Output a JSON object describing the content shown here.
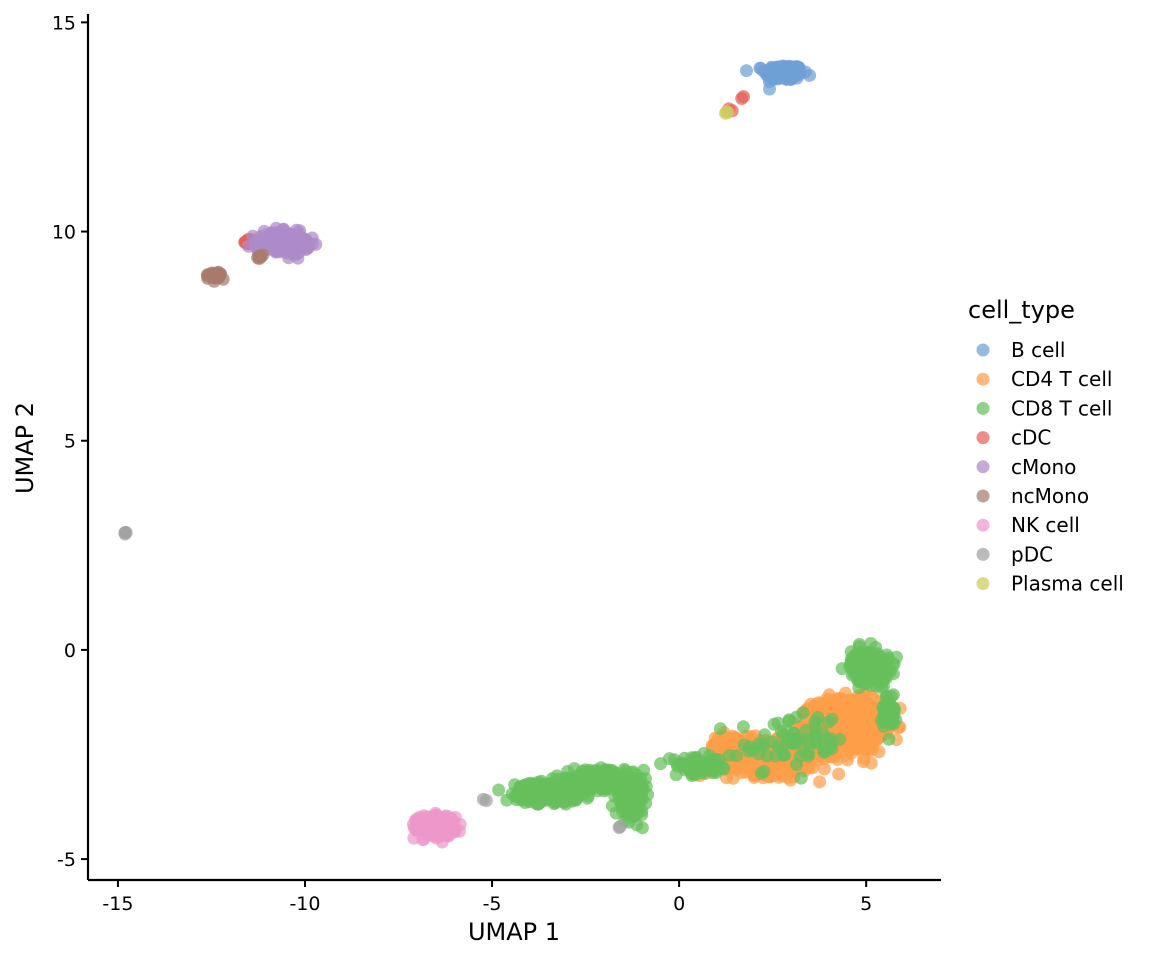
{
  "chart_data": {
    "type": "scatter",
    "title": "",
    "xlabel": "UMAP 1",
    "ylabel": "UMAP 2",
    "xlim": [
      -15.8,
      7.0
    ],
    "ylim": [
      -5.5,
      15.2
    ],
    "xticks": [
      -15,
      -10,
      -5,
      0,
      5
    ],
    "yticks": [
      -5,
      0,
      5,
      10,
      15
    ],
    "xtick_labels": [
      "-15",
      "-10",
      "-5",
      "0",
      "5"
    ],
    "ytick_labels": [
      "-5",
      "0",
      "5",
      "10",
      "15"
    ],
    "grid": false,
    "legend_title": "cell_type",
    "legend_position": "right",
    "series": [
      {
        "name": "B cell",
        "color": "#6f9fd6",
        "clusters": [
          {
            "center": [
              2.8,
              13.8
            ],
            "spread": [
              0.45,
              0.17
            ],
            "n": 220
          }
        ]
      },
      {
        "name": "CD4 T cell",
        "color": "#ff9e4a",
        "clusters": [
          {
            "center": [
              4.5,
              -1.8
            ],
            "spread": [
              0.85,
              0.55
            ],
            "n": 900
          },
          {
            "center": [
              2.5,
              -2.6
            ],
            "spread": [
              1.1,
              0.35
            ],
            "n": 450
          },
          {
            "center": [
              1.5,
              -2.3
            ],
            "spread": [
              0.6,
              0.25
            ],
            "n": 120
          }
        ]
      },
      {
        "name": "CD8 T cell",
        "color": "#67bf5c",
        "clusters": [
          {
            "center": [
              5.1,
              -0.4
            ],
            "spread": [
              0.45,
              0.35
            ],
            "n": 250
          },
          {
            "center": [
              5.6,
              -1.5
            ],
            "spread": [
              0.15,
              0.4
            ],
            "n": 60
          },
          {
            "center": [
              -3.5,
              -3.4
            ],
            "spread": [
              0.75,
              0.2
            ],
            "n": 450
          },
          {
            "center": [
              -2.2,
              -3.1
            ],
            "spread": [
              0.7,
              0.2
            ],
            "n": 300
          },
          {
            "center": [
              -1.3,
              -3.5
            ],
            "spread": [
              0.35,
              0.4
            ],
            "n": 180
          },
          {
            "center": [
              0.5,
              -2.8
            ],
            "spread": [
              0.8,
              0.2
            ],
            "n": 60
          },
          {
            "center": [
              3.0,
              -2.2
            ],
            "spread": [
              1.3,
              0.6
            ],
            "n": 70
          }
        ]
      },
      {
        "name": "cDC",
        "color": "#e8605a",
        "clusters": [
          {
            "center": [
              -11.5,
              9.75
            ],
            "spread": [
              0.1,
              0.06
            ],
            "n": 18
          },
          {
            "center": [
              1.7,
              13.2
            ],
            "spread": [
              0.05,
              0.05
            ],
            "n": 2
          },
          {
            "center": [
              1.4,
              12.9
            ],
            "spread": [
              0.05,
              0.05
            ],
            "n": 2
          }
        ]
      },
      {
        "name": "cMono",
        "color": "#ad8bc9",
        "clusters": [
          {
            "center": [
              -10.5,
              9.75
            ],
            "spread": [
              0.55,
              0.2
            ],
            "n": 260
          }
        ]
      },
      {
        "name": "ncMono",
        "color": "#a87c6c",
        "clusters": [
          {
            "center": [
              -12.4,
              8.95
            ],
            "spread": [
              0.15,
              0.08
            ],
            "n": 40
          },
          {
            "center": [
              -11.2,
              9.4
            ],
            "spread": [
              0.08,
              0.06
            ],
            "n": 6
          }
        ]
      },
      {
        "name": "NK cell",
        "color": "#ed97ca",
        "clusters": [
          {
            "center": [
              -6.5,
              -4.2
            ],
            "spread": [
              0.45,
              0.22
            ],
            "n": 260
          }
        ]
      },
      {
        "name": "pDC",
        "color": "#a2a2a2",
        "clusters": [
          {
            "center": [
              -14.8,
              2.8
            ],
            "spread": [
              0.03,
              0.03
            ],
            "n": 4
          },
          {
            "center": [
              -1.6,
              -4.25
            ],
            "spread": [
              0.03,
              0.03
            ],
            "n": 2
          },
          {
            "center": [
              -5.2,
              -3.6
            ],
            "spread": [
              0.05,
              0.05
            ],
            "n": 2
          }
        ]
      },
      {
        "name": "Plasma cell",
        "color": "#cdcc5d",
        "clusters": [
          {
            "center": [
              1.3,
              12.85
            ],
            "spread": [
              0.03,
              0.03
            ],
            "n": 3
          }
        ]
      }
    ]
  }
}
